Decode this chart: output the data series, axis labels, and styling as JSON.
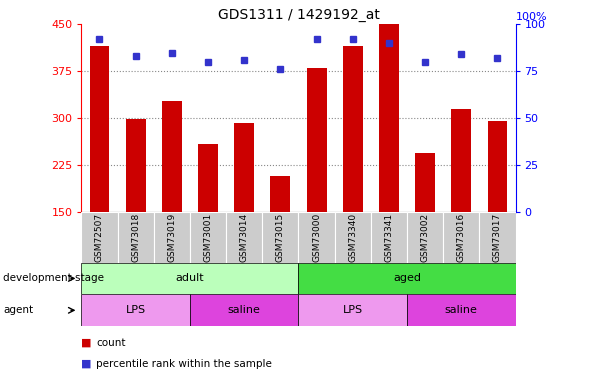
{
  "title": "GDS1311 / 1429192_at",
  "samples": [
    "GSM72507",
    "GSM73018",
    "GSM73019",
    "GSM73001",
    "GSM73014",
    "GSM73015",
    "GSM73000",
    "GSM73340",
    "GSM73341",
    "GSM73002",
    "GSM73016",
    "GSM73017"
  ],
  "counts": [
    415,
    298,
    328,
    258,
    293,
    208,
    380,
    415,
    450,
    245,
    315,
    295
  ],
  "percentiles": [
    92,
    83,
    85,
    80,
    81,
    76,
    92,
    92,
    90,
    80,
    84,
    82
  ],
  "y_min": 150,
  "y_max": 450,
  "y_ticks": [
    150,
    225,
    300,
    375,
    450
  ],
  "y2_ticks": [
    0,
    25,
    50,
    75,
    100
  ],
  "bar_color": "#cc0000",
  "dot_color": "#3333cc",
  "grid_color": "#888888",
  "dev_stage_groups": [
    {
      "label": "adult",
      "start": 0,
      "end": 6,
      "color": "#bbffbb"
    },
    {
      "label": "aged",
      "start": 6,
      "end": 12,
      "color": "#44dd44"
    }
  ],
  "agent_groups": [
    {
      "label": "LPS",
      "start": 0,
      "end": 3,
      "color": "#ee99ee"
    },
    {
      "label": "saline",
      "start": 3,
      "end": 6,
      "color": "#dd44dd"
    },
    {
      "label": "LPS",
      "start": 6,
      "end": 9,
      "color": "#ee99ee"
    },
    {
      "label": "saline",
      "start": 9,
      "end": 12,
      "color": "#dd44dd"
    }
  ],
  "xlabel_dev": "development stage",
  "xlabel_agent": "agent",
  "legend_count": "count",
  "legend_pct": "percentile rank within the sample",
  "sample_bg": "#cccccc"
}
